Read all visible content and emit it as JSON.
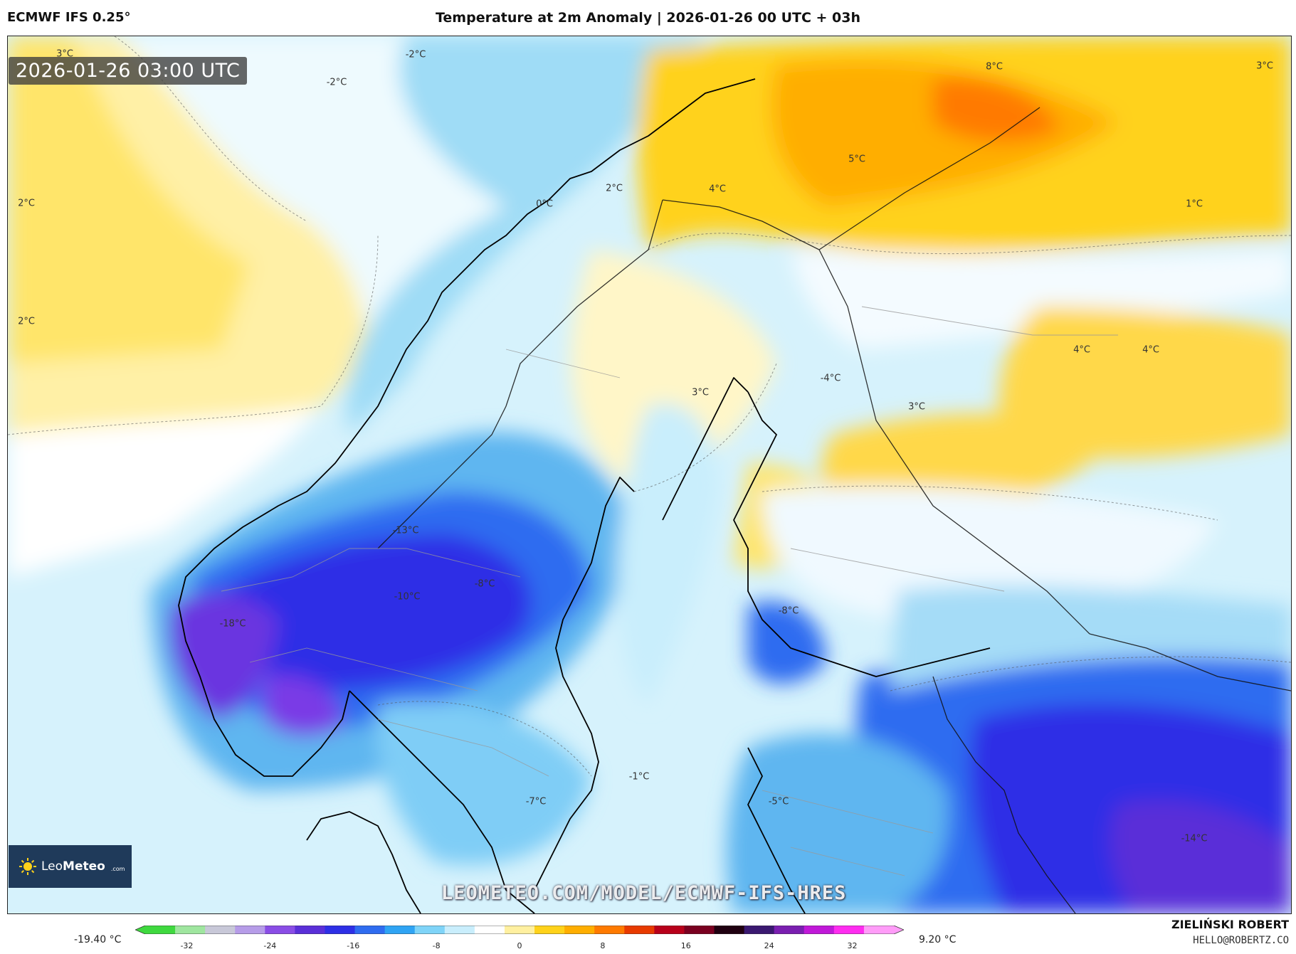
{
  "header": {
    "model": "ECMWF IFS 0.25°",
    "title": "Temperature at 2m Anomaly | 2026-01-26 00 UTC + 03h"
  },
  "timestamp": "2026-01-26 03:00 UTC",
  "watermark": "LEOMETEO.COM/MODEL/ECMWF-IFS-HRES",
  "logo": {
    "name_plain": "Leo",
    "name_bold": "Meteo",
    "domain": ".com"
  },
  "author": {
    "name": "ZIELIŃSKI ROBERT",
    "email": "HELLO@ROBERTZ.CO"
  },
  "colorbar": {
    "min_value": "-19.40 °C",
    "max_value": "9.20 °C",
    "ticks": [
      "-32",
      "-24",
      "-16",
      "-8",
      "0",
      "8",
      "16",
      "24",
      "32"
    ],
    "tick_values": [
      -32,
      -24,
      -16,
      -8,
      0,
      8,
      16,
      24,
      32
    ],
    "range": [
      -36,
      36
    ],
    "colors": [
      "#3fd93f",
      "#9fe69f",
      "#c8c8d8",
      "#b69ce8",
      "#8a4de6",
      "#5a2fd8",
      "#2d2fe6",
      "#2f6cf0",
      "#2fa4f4",
      "#7fd4f8",
      "#c9eefc",
      "#ffffff",
      "#fff0a0",
      "#ffd21a",
      "#ffae00",
      "#ff7a00",
      "#e83a00",
      "#b8001a",
      "#7a0020",
      "#200010",
      "#3a1870",
      "#7a1fb0",
      "#c018d8",
      "#ff2cf0",
      "#ff9cf8"
    ]
  },
  "map_labels": [
    {
      "text": "3°C",
      "lon": 90,
      "lat": 75
    },
    {
      "text": "-2°C",
      "lon": 583,
      "lat": 76
    },
    {
      "text": "-2°C",
      "lon": 472,
      "lat": 115
    },
    {
      "text": "2°C",
      "lon": 36,
      "lat": 285
    },
    {
      "text": "2°C",
      "lon": 36,
      "lat": 451
    },
    {
      "text": "0°C",
      "lon": 764,
      "lat": 286
    },
    {
      "text": "2°C",
      "lon": 862,
      "lat": 264
    },
    {
      "text": "4°C",
      "lon": 1007,
      "lat": 265
    },
    {
      "text": "8°C",
      "lon": 1396,
      "lat": 93
    },
    {
      "text": "5°C",
      "lon": 1203,
      "lat": 223
    },
    {
      "text": "3°C",
      "lon": 1776,
      "lat": 92
    },
    {
      "text": "1°C",
      "lon": 1677,
      "lat": 286
    },
    {
      "text": "3°C",
      "lon": 983,
      "lat": 551
    },
    {
      "text": "-4°C",
      "lon": 1166,
      "lat": 531
    },
    {
      "text": "3°C",
      "lon": 1287,
      "lat": 571
    },
    {
      "text": "4°C",
      "lon": 1519,
      "lat": 491
    },
    {
      "text": "4°C",
      "lon": 1616,
      "lat": 491
    },
    {
      "text": "-13°C",
      "lon": 569,
      "lat": 745
    },
    {
      "text": "-8°C",
      "lon": 680,
      "lat": 820
    },
    {
      "text": "-10°C",
      "lon": 571,
      "lat": 838
    },
    {
      "text": "-18°C",
      "lon": 326,
      "lat": 876
    },
    {
      "text": "-8°C",
      "lon": 1107,
      "lat": 858
    },
    {
      "text": "-1°C",
      "lon": 897,
      "lat": 1091
    },
    {
      "text": "-7°C",
      "lon": 752,
      "lat": 1126
    },
    {
      "text": "-5°C",
      "lon": 1093,
      "lat": 1126
    },
    {
      "text": "-14°C",
      "lon": 1677,
      "lat": 1178
    }
  ]
}
